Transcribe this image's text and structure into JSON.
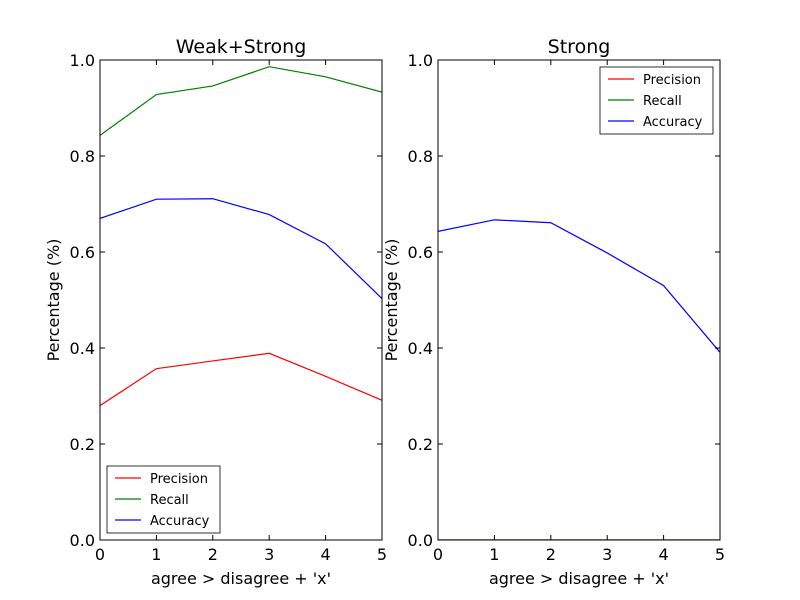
{
  "chart_data": [
    {
      "type": "line",
      "title": "Weak+Strong",
      "xlabel": "agree > disagree + 'x'",
      "ylabel": "Percentage (%)",
      "x": [
        0,
        1,
        2,
        3,
        4,
        5
      ],
      "xlim": [
        0,
        5
      ],
      "ylim": [
        0.0,
        1.0
      ],
      "xticks": [
        "0",
        "1",
        "2",
        "3",
        "4",
        "5"
      ],
      "yticks": [
        "0.0",
        "0.2",
        "0.4",
        "0.6",
        "0.8",
        "1.0"
      ],
      "grid": false,
      "legend_position": "lower-left",
      "series": [
        {
          "name": "Precision",
          "color": "#ff0000",
          "values": [
            0.28,
            0.357,
            0.373,
            0.389,
            0.341,
            0.291
          ]
        },
        {
          "name": "Recall",
          "color": "#008000",
          "values": [
            0.843,
            0.928,
            0.946,
            0.986,
            0.965,
            0.933
          ]
        },
        {
          "name": "Accuracy",
          "color": "#0000ff",
          "values": [
            0.67,
            0.71,
            0.711,
            0.678,
            0.617,
            0.503
          ]
        }
      ]
    },
    {
      "type": "line",
      "title": "Strong",
      "xlabel": "agree > disagree + 'x'",
      "ylabel": "Percentage (%)",
      "x": [
        0,
        1,
        2,
        3,
        4,
        5
      ],
      "xlim": [
        0,
        5
      ],
      "ylim": [
        0.0,
        1.0
      ],
      "xticks": [
        "0",
        "1",
        "2",
        "3",
        "4",
        "5"
      ],
      "yticks": [
        "0.0",
        "0.2",
        "0.4",
        "0.6",
        "0.8",
        "1.0"
      ],
      "grid": false,
      "legend_position": "upper-right",
      "series": [
        {
          "name": "Precision",
          "color": "#ff0000",
          "values": [
            0.0,
            0.0,
            0.0,
            0.0,
            0.0,
            0.0
          ]
        },
        {
          "name": "Recall",
          "color": "#008000",
          "values": [
            0.0,
            0.0,
            0.0,
            0.0,
            0.0,
            0.0
          ]
        },
        {
          "name": "Accuracy",
          "color": "#0000ff",
          "values": [
            0.643,
            0.667,
            0.661,
            0.598,
            0.53,
            0.391
          ]
        }
      ]
    }
  ]
}
